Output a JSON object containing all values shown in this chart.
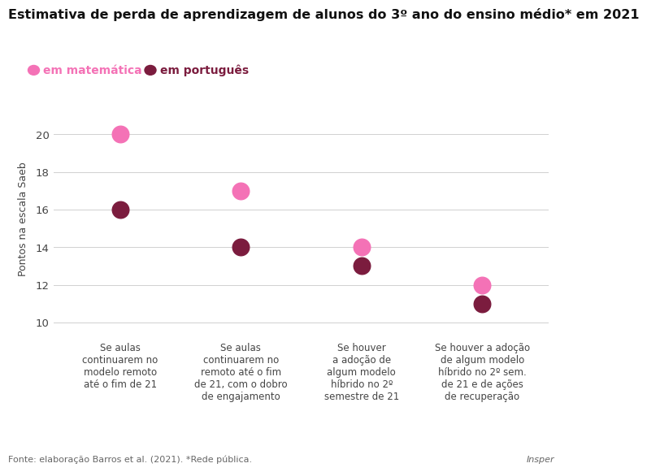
{
  "title": "Estimativa de perda de aprendizagem de alunos do 3º ano do ensino médio* em 2021",
  "ylabel": "Pontos na escala Saeb",
  "categories": [
    "Se aulas\ncontinuarem no\nmodelo remoto\naté o fim de 21",
    "Se aulas\ncontinuarem no\nremoto até o fim\nde 21, com o dobro\nde engajamento",
    "Se houver\na adoção de\nalgum modelo\nhíbrido no 2º\nsemestre de 21",
    "Se houver a adoção\nde algum modelo\nhíbrido no 2º sem.\nde 21 e de ações\nde recuperação"
  ],
  "matematica": [
    20,
    17,
    14,
    12
  ],
  "portugues": [
    16,
    14,
    13,
    11
  ],
  "color_matematica": "#F472B6",
  "color_portugues": "#7B1C3E",
  "ylim": [
    9.5,
    21.5
  ],
  "yticks": [
    10,
    12,
    14,
    16,
    18,
    20
  ],
  "marker_size": 220,
  "legend_matematica": "em matemática",
  "legend_portugues": "em português",
  "footer_left": "Fonte: elaboração Barros et al. (2021). *Rede pública.",
  "footer_right": "Insper",
  "background_color": "#ffffff",
  "title_fontsize": 11.5,
  "axis_label_fontsize": 9,
  "tick_fontsize": 9.5,
  "xtick_fontsize": 8.5,
  "footer_fontsize": 8,
  "legend_fontsize": 10,
  "legend_marker_size": 9
}
